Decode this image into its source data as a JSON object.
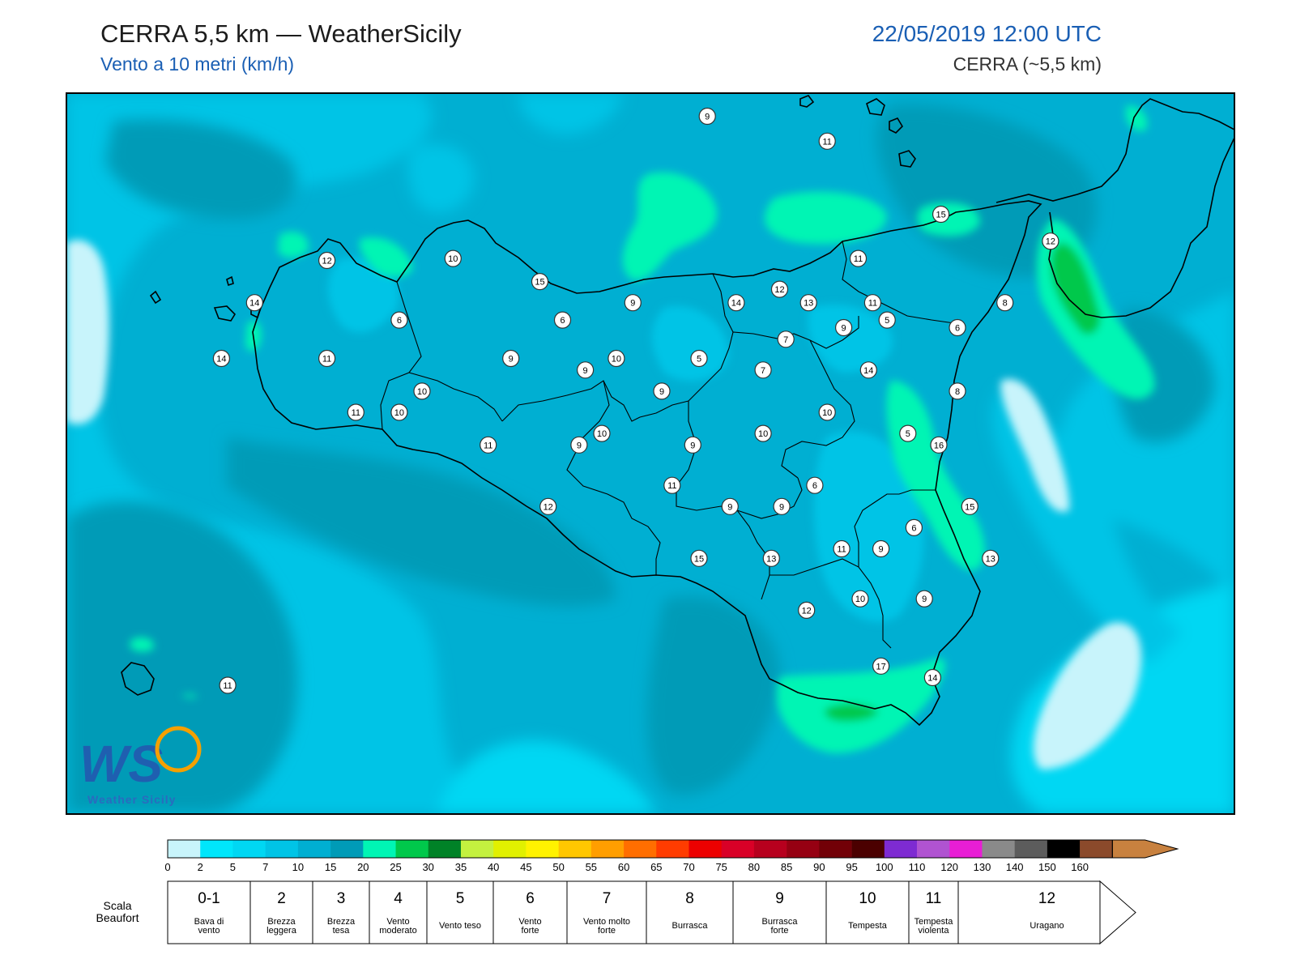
{
  "header": {
    "title": "CERRA 5,5 km — WeatherSicily",
    "subtitle": "Vento a 10 metri (km/h)",
    "datetime": "22/05/2019 12:00 UTC",
    "model": "CERRA (~5,5 km)"
  },
  "logo": {
    "letters": "WS",
    "text": "Weather Sicily"
  },
  "map": {
    "region": "Sicily",
    "stations": [
      {
        "v": "9",
        "lon": 14.4,
        "lat": 38.93
      },
      {
        "v": "11",
        "lon": 14.98,
        "lat": 38.8
      },
      {
        "v": "15",
        "lon": 15.53,
        "lat": 38.42
      },
      {
        "v": "12",
        "lon": 16.06,
        "lat": 38.28
      },
      {
        "v": "12",
        "lon": 12.56,
        "lat": 38.18
      },
      {
        "v": "10",
        "lon": 13.17,
        "lat": 38.19
      },
      {
        "v": "15",
        "lon": 13.59,
        "lat": 38.07
      },
      {
        "v": "11",
        "lon": 15.13,
        "lat": 38.19
      },
      {
        "v": "12",
        "lon": 14.75,
        "lat": 38.03
      },
      {
        "v": "14",
        "lon": 12.21,
        "lat": 37.96
      },
      {
        "v": "9",
        "lon": 14.04,
        "lat": 37.96
      },
      {
        "v": "14",
        "lon": 14.54,
        "lat": 37.96
      },
      {
        "v": "13",
        "lon": 14.89,
        "lat": 37.96
      },
      {
        "v": "11",
        "lon": 15.2,
        "lat": 37.96
      },
      {
        "v": "8",
        "lon": 15.84,
        "lat": 37.96
      },
      {
        "v": "6",
        "lon": 12.91,
        "lat": 37.87
      },
      {
        "v": "6",
        "lon": 13.7,
        "lat": 37.87
      },
      {
        "v": "6",
        "lon": 15.61,
        "lat": 37.83
      },
      {
        "v": "5",
        "lon": 15.27,
        "lat": 37.87
      },
      {
        "v": "9",
        "lon": 15.06,
        "lat": 37.83
      },
      {
        "v": "7",
        "lon": 14.78,
        "lat": 37.77
      },
      {
        "v": "14",
        "lon": 12.05,
        "lat": 37.67
      },
      {
        "v": "11",
        "lon": 12.56,
        "lat": 37.67
      },
      {
        "v": "9",
        "lon": 13.45,
        "lat": 37.67
      },
      {
        "v": "10",
        "lon": 13.96,
        "lat": 37.67
      },
      {
        "v": "5",
        "lon": 14.36,
        "lat": 37.67
      },
      {
        "v": "9",
        "lon": 13.81,
        "lat": 37.61
      },
      {
        "v": "7",
        "lon": 14.67,
        "lat": 37.61
      },
      {
        "v": "14",
        "lon": 15.18,
        "lat": 37.61
      },
      {
        "v": "10",
        "lon": 13.02,
        "lat": 37.5
      },
      {
        "v": "9",
        "lon": 14.18,
        "lat": 37.5
      },
      {
        "v": "8",
        "lon": 15.61,
        "lat": 37.5
      },
      {
        "v": "11",
        "lon": 12.7,
        "lat": 37.39
      },
      {
        "v": "10",
        "lon": 12.91,
        "lat": 37.39
      },
      {
        "v": "10",
        "lon": 14.98,
        "lat": 37.39
      },
      {
        "v": "10",
        "lon": 13.89,
        "lat": 37.28
      },
      {
        "v": "10",
        "lon": 14.67,
        "lat": 37.28
      },
      {
        "v": "5",
        "lon": 15.37,
        "lat": 37.28
      },
      {
        "v": "11",
        "lon": 13.34,
        "lat": 37.22
      },
      {
        "v": "9",
        "lon": 13.78,
        "lat": 37.22
      },
      {
        "v": "9",
        "lon": 14.33,
        "lat": 37.22
      },
      {
        "v": "16",
        "lon": 15.52,
        "lat": 37.22
      },
      {
        "v": "11",
        "lon": 14.23,
        "lat": 37.01
      },
      {
        "v": "6",
        "lon": 14.92,
        "lat": 37.01
      },
      {
        "v": "12",
        "lon": 13.63,
        "lat": 36.9
      },
      {
        "v": "9",
        "lon": 14.51,
        "lat": 36.9
      },
      {
        "v": "9",
        "lon": 14.76,
        "lat": 36.9
      },
      {
        "v": "15",
        "lon": 15.67,
        "lat": 36.9
      },
      {
        "v": "6",
        "lon": 15.4,
        "lat": 36.79
      },
      {
        "v": "11",
        "lon": 15.05,
        "lat": 36.68
      },
      {
        "v": "9",
        "lon": 15.24,
        "lat": 36.68
      },
      {
        "v": "15",
        "lon": 14.36,
        "lat": 36.63
      },
      {
        "v": "13",
        "lon": 14.71,
        "lat": 36.63
      },
      {
        "v": "13",
        "lon": 15.77,
        "lat": 36.63
      },
      {
        "v": "10",
        "lon": 15.14,
        "lat": 36.42
      },
      {
        "v": "9",
        "lon": 15.45,
        "lat": 36.42
      },
      {
        "v": "12",
        "lon": 14.88,
        "lat": 36.36
      },
      {
        "v": "17",
        "lon": 15.24,
        "lat": 36.07
      },
      {
        "v": "14",
        "lon": 15.49,
        "lat": 36.01
      },
      {
        "v": "11",
        "lon": 12.08,
        "lat": 35.97
      }
    ]
  },
  "colorbar": {
    "ticks": [
      "0",
      "2",
      "5",
      "7",
      "10",
      "15",
      "20",
      "25",
      "30",
      "35",
      "40",
      "45",
      "50",
      "55",
      "60",
      "65",
      "70",
      "75",
      "80",
      "85",
      "90",
      "95",
      "100",
      "110",
      "120",
      "130",
      "140",
      "150",
      "160"
    ],
    "colors": [
      "#c8f4fb",
      "#00e6fb",
      "#00d7f3",
      "#00c4e6",
      "#00afd2",
      "#009bb7",
      "#00f5b4",
      "#00c84b",
      "#008227",
      "#c4f13f",
      "#e1f000",
      "#fff200",
      "#ffc700",
      "#ff9e00",
      "#ff6e00",
      "#ff3c00",
      "#ec0000",
      "#d90027",
      "#b7001e",
      "#960012",
      "#720007",
      "#4b0000",
      "#7e2bd2",
      "#b053d1",
      "#e81ed5",
      "#8a8a8a",
      "#5c5c5c",
      "#000000",
      "#8b4a2b",
      "#c8813f"
    ]
  },
  "beaufort": {
    "label_line1": "Scala",
    "label_line2": "Beaufort",
    "cells": [
      {
        "num": "0-1",
        "l1": "Bava di",
        "l2": "vento"
      },
      {
        "num": "2",
        "l1": "Brezza",
        "l2": "leggera"
      },
      {
        "num": "3",
        "l1": "Brezza",
        "l2": "tesa"
      },
      {
        "num": "4",
        "l1": "Vento",
        "l2": "moderato"
      },
      {
        "num": "5",
        "l1": "Vento teso",
        "l2": ""
      },
      {
        "num": "6",
        "l1": "Vento",
        "l2": "forte"
      },
      {
        "num": "7",
        "l1": "Vento molto",
        "l2": "forte"
      },
      {
        "num": "8",
        "l1": "Burrasca",
        "l2": ""
      },
      {
        "num": "9",
        "l1": "Burrasca",
        "l2": "forte"
      },
      {
        "num": "10",
        "l1": "Tempesta",
        "l2": ""
      },
      {
        "num": "11",
        "l1": "Tempesta",
        "l2": "violenta"
      },
      {
        "num": "12",
        "l1": "Uragano",
        "l2": ""
      }
    ]
  }
}
